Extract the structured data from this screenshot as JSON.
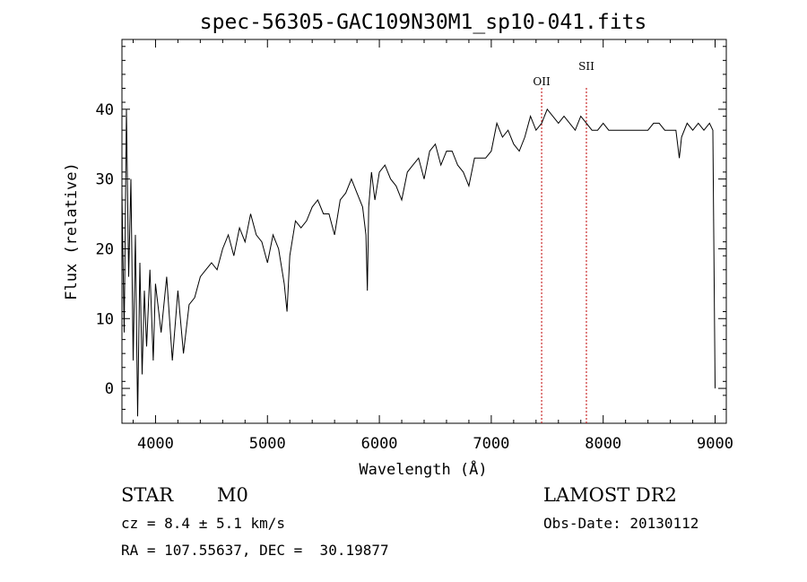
{
  "chart_data": {
    "type": "line",
    "title": "spec-56305-GAC109N30M1_sp10-041.fits",
    "xlabel": "Wavelength (Å)",
    "ylabel": "Flux (relative)",
    "xlim": [
      3700,
      9100
    ],
    "ylim": [
      -5,
      50
    ],
    "xticks": [
      4000,
      5000,
      6000,
      7000,
      8000,
      9000
    ],
    "yticks": [
      0,
      10,
      20,
      30,
      40
    ],
    "grid": false,
    "line_color": "#000000",
    "series": [
      {
        "x": [
          3700,
          3720,
          3740,
          3760,
          3780,
          3800,
          3820,
          3840,
          3860,
          3880,
          3900,
          3920,
          3950,
          3980,
          4000,
          4050,
          4100,
          4150,
          4200,
          4250,
          4300,
          4350,
          4400,
          4450,
          4500,
          4550,
          4600,
          4650,
          4700,
          4750,
          4800,
          4850,
          4900,
          4950,
          5000,
          5050,
          5100,
          5150,
          5175,
          5200,
          5250,
          5300,
          5350,
          5400,
          5450,
          5500,
          5550,
          5600,
          5650,
          5700,
          5750,
          5800,
          5850,
          5880,
          5893,
          5905,
          5930,
          5960,
          6000,
          6050,
          6100,
          6150,
          6200,
          6250,
          6300,
          6350,
          6400,
          6450,
          6500,
          6550,
          6600,
          6650,
          6700,
          6750,
          6800,
          6850,
          6900,
          6950,
          7000,
          7050,
          7100,
          7150,
          7200,
          7250,
          7300,
          7350,
          7400,
          7450,
          7500,
          7550,
          7600,
          7650,
          7700,
          7750,
          7800,
          7850,
          7900,
          7950,
          8000,
          8050,
          8100,
          8150,
          8200,
          8250,
          8300,
          8350,
          8400,
          8450,
          8500,
          8550,
          8600,
          8650,
          8680,
          8700,
          8750,
          8800,
          8850,
          8900,
          8950,
          8980,
          9000
        ],
        "y": [
          28,
          8,
          40,
          16,
          30,
          4,
          22,
          -4,
          18,
          2,
          14,
          6,
          17,
          4,
          15,
          8,
          16,
          4,
          14,
          5,
          12,
          13,
          16,
          17,
          18,
          17,
          20,
          22,
          19,
          23,
          21,
          25,
          22,
          21,
          18,
          22,
          20,
          15,
          11,
          19,
          24,
          23,
          24,
          26,
          27,
          25,
          25,
          22,
          27,
          28,
          30,
          28,
          26,
          22,
          14,
          26,
          31,
          27,
          31,
          32,
          30,
          29,
          27,
          31,
          32,
          33,
          30,
          34,
          35,
          32,
          34,
          34,
          32,
          31,
          29,
          33,
          33,
          33,
          34,
          38,
          36,
          37,
          35,
          34,
          36,
          39,
          37,
          38,
          40,
          39,
          38,
          39,
          38,
          37,
          39,
          38,
          37,
          37,
          38,
          37,
          37,
          37,
          37,
          37,
          37,
          37,
          37,
          38,
          38,
          37,
          37,
          37,
          33,
          36,
          38,
          37,
          38,
          37,
          38,
          37,
          0
        ]
      }
    ],
    "annotations": [
      {
        "label": "OII",
        "x": 7450
      },
      {
        "label": "SII",
        "x": 7850
      }
    ],
    "annotation_line_color": "#c00000"
  },
  "info": {
    "object_class": "STAR",
    "subclass": "M0",
    "redshift": "cz = 8.4 ± 5.1 km/s",
    "coords": "RA = 107.55637, DEC =  30.19877",
    "survey": "LAMOST DR2",
    "obs_date": "Obs-Date: 20130112"
  }
}
